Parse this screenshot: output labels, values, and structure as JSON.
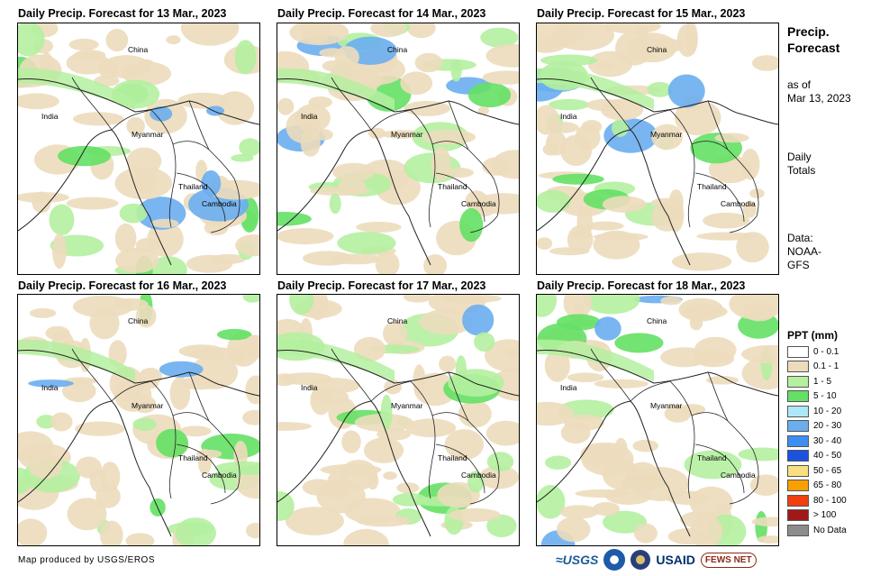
{
  "panels": [
    {
      "title": "Daily Precip. Forecast for 13 Mar., 2023"
    },
    {
      "title": "Daily Precip. Forecast for 14 Mar., 2023"
    },
    {
      "title": "Daily Precip. Forecast for 15 Mar., 2023"
    },
    {
      "title": "Daily Precip. Forecast for 16 Mar., 2023"
    },
    {
      "title": "Daily Precip. Forecast for 17 Mar., 2023"
    },
    {
      "title": "Daily Precip. Forecast for 18 Mar., 2023"
    }
  ],
  "map_labels": {
    "china": "China",
    "india": "India",
    "myanmar": "Myanmar",
    "thailand": "Thailand",
    "cambodia": "Cambodia"
  },
  "sidebar": {
    "title_line1": "Precip.",
    "title_line2": "Forecast",
    "asof_line1": "as of",
    "asof_line2": "Mar 13, 2023",
    "daily_line1": "Daily",
    "daily_line2": "Totals",
    "data_line1": "Data:",
    "data_line2": "NOAA-",
    "data_line3": "GFS"
  },
  "legend": {
    "title": "PPT (mm)",
    "items": [
      {
        "label": "0 - 0.1",
        "color": "#ffffff"
      },
      {
        "label": "0.1 - 1",
        "color": "#ecdcbc"
      },
      {
        "label": "1 - 5",
        "color": "#b4f0a0"
      },
      {
        "label": "5 - 10",
        "color": "#64e064"
      },
      {
        "label": "10 - 20",
        "color": "#aee8f8"
      },
      {
        "label": "20 - 30",
        "color": "#6aaef0"
      },
      {
        "label": "30 - 40",
        "color": "#3c8ef0"
      },
      {
        "label": "40 - 50",
        "color": "#1c52e0"
      },
      {
        "label": "50 - 65",
        "color": "#f8e080"
      },
      {
        "label": "65 - 80",
        "color": "#f8a000"
      },
      {
        "label": "80 - 100",
        "color": "#f04010"
      },
      {
        "label": "> 100",
        "color": "#a01818"
      },
      {
        "label": "No Data",
        "color": "#8c8c8c"
      }
    ]
  },
  "footer": {
    "credit": "Map produced by USGS/EROS",
    "logo_usgs": "≈USGS",
    "logo_noaa": "noaa-logo",
    "logo_dos": "state-dept-seal",
    "logo_usaid": "USAID",
    "logo_fews": "FEWS NET"
  }
}
